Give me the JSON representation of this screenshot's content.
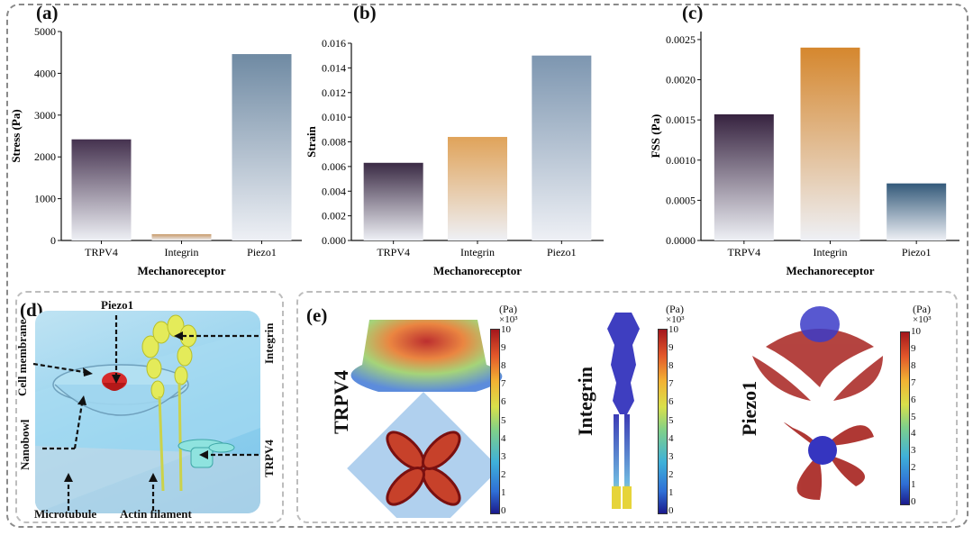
{
  "panel_labels": {
    "a": "(a)",
    "b": "(b)",
    "c": "(c)",
    "d": "(d)",
    "e": "(e)"
  },
  "chart_data": [
    {
      "type": "bar",
      "categories": [
        "TRPV4",
        "Integrin",
        "Piezo1"
      ],
      "values": [
        2420,
        150,
        4460
      ],
      "xlabel": "Mechanoreceptor",
      "ylabel": "Stress (Pa)",
      "ylim": [
        0,
        5000
      ],
      "yticks": [
        "0",
        "1000",
        "2000",
        "3000",
        "4000",
        "5000"
      ],
      "colors": [
        "#45324f",
        "#c89a6a",
        "#6f8aa3"
      ]
    },
    {
      "type": "bar",
      "categories": [
        "TRPV4",
        "Integrin",
        "Piezo1"
      ],
      "values": [
        0.0063,
        0.0084,
        0.015
      ],
      "xlabel": "Mechanoreceptor",
      "ylabel": "Strain",
      "ylim": [
        0,
        0.016
      ],
      "yticks": [
        "0.000",
        "0.002",
        "0.004",
        "0.006",
        "0.008",
        "0.010",
        "0.012",
        "0.014",
        "0.016"
      ],
      "colors": [
        "#3a2a44",
        "#e0a35a",
        "#7d96b0"
      ]
    },
    {
      "type": "bar",
      "categories": [
        "TRPV4",
        "Integrin",
        "Piezo1"
      ],
      "values": [
        0.00157,
        0.0024,
        0.00071
      ],
      "xlabel": "Mechanoreceptor",
      "ylabel": "FSS (Pa)",
      "ylim": [
        0,
        0.0026
      ],
      "yticks": [
        "0.0000",
        "0.0005",
        "0.0010",
        "0.0015",
        "0.0020",
        "0.0025"
      ],
      "colors": [
        "#36223f",
        "#d5872e",
        "#345a7a"
      ]
    }
  ],
  "diagram": {
    "piezo1": "Piezo1",
    "integrin": "Integrin",
    "cell_membrane": "Cell membrane",
    "nanobowl": "Nanobowl",
    "trpv4": "TRPV4",
    "microtubule": "Microtubule",
    "actin": "Actin filament"
  },
  "simulation": {
    "titles": [
      "TRPV4",
      "Integrin",
      "Piezo1"
    ],
    "unit": "(Pa)",
    "exponent": "×10³",
    "ticks_a": [
      "10",
      "9",
      "8",
      "7",
      "6",
      "5",
      "4",
      "3",
      "2",
      "1",
      "0"
    ],
    "ticks_c": [
      "10",
      "9",
      "8",
      "7",
      "6",
      "5",
      "4",
      "3",
      "2",
      "1",
      "0"
    ]
  }
}
